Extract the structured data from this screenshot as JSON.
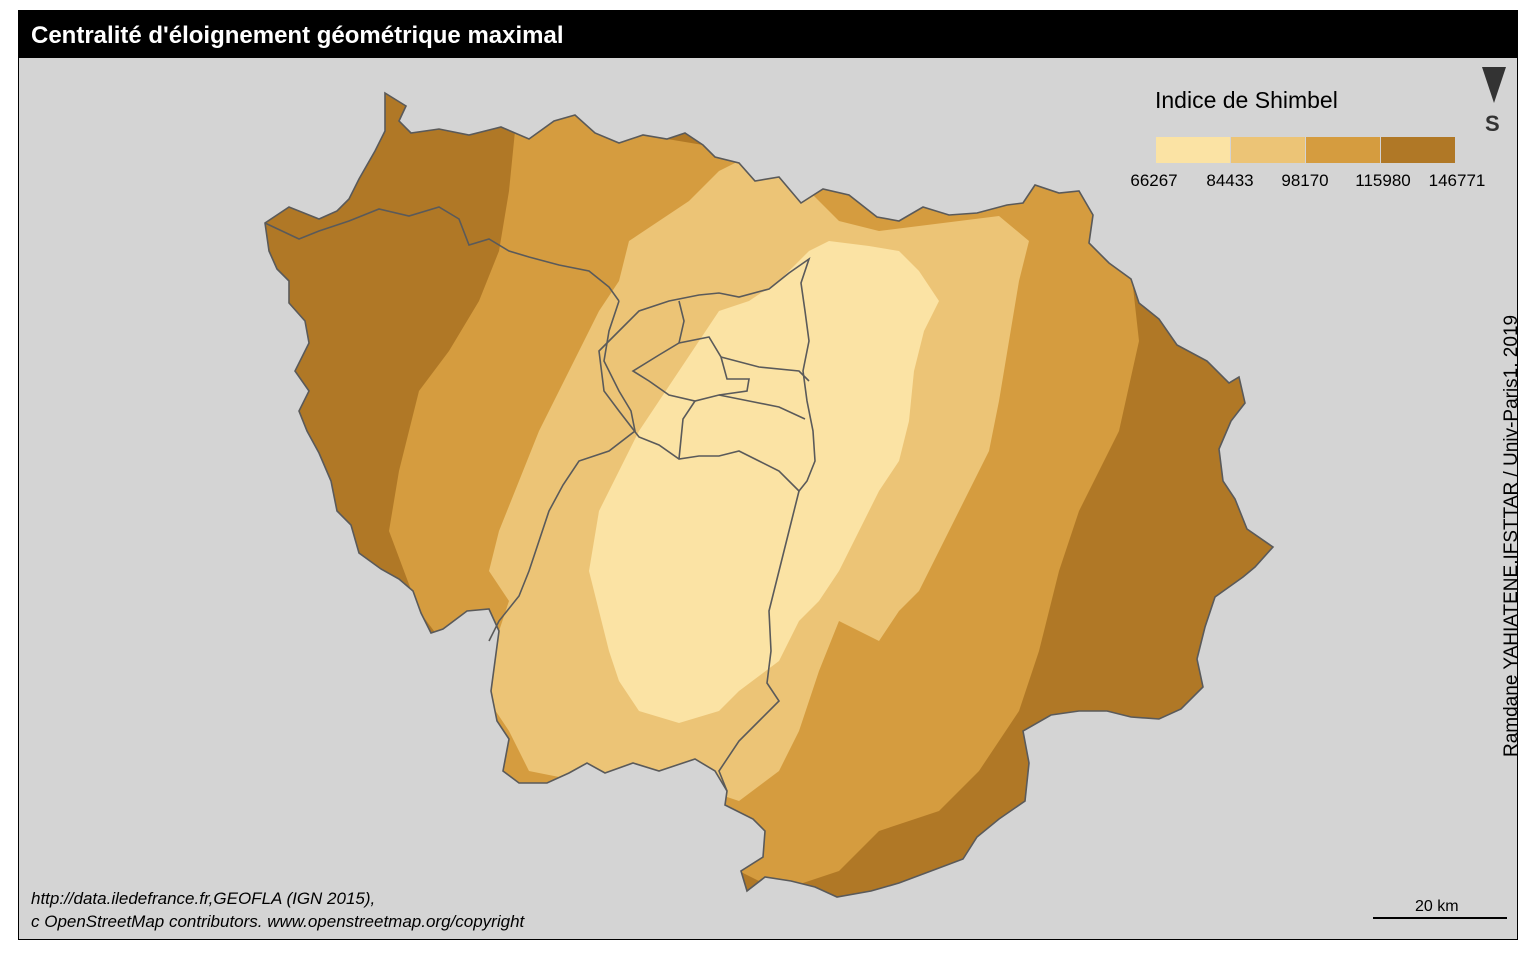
{
  "title": "Centralité d'éloignement géométrique maximal",
  "legend": {
    "title": "Indice de Shimbel",
    "breaks": [
      "66267",
      "84433",
      "98170",
      "115980",
      "146771"
    ],
    "classes": [
      {
        "color": "#fbe3a4"
      },
      {
        "color": "#ecc476"
      },
      {
        "color": "#d59c3f"
      },
      {
        "color": "#b07826"
      }
    ]
  },
  "north_arrow": {
    "label": "S",
    "icon": "north-arrow-icon"
  },
  "credit": "Ramdane YAHIATENE,IFSTTAR / Univ-Paris1, 2019",
  "source": {
    "line1": "http://data.iledefrance.fr,GEOFLA (IGN 2015),",
    "line2": "c OpenStreetMap contributors. www.openstreetmap.org/copyright"
  },
  "scale_bar": {
    "label": "20 km"
  },
  "colors": {
    "background": "#d4d4d4",
    "border": "#5a5a5a",
    "title_bar": "#000000"
  }
}
